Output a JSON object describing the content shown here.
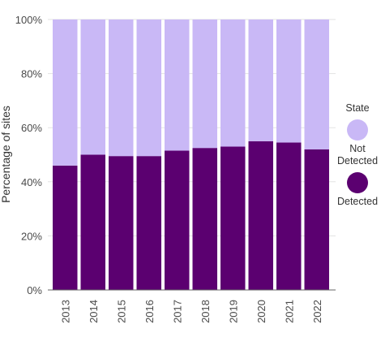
{
  "chart_data": {
    "type": "bar",
    "stacked": true,
    "categories": [
      "2013",
      "2014",
      "2015",
      "2016",
      "2017",
      "2018",
      "2019",
      "2020",
      "2021",
      "2022"
    ],
    "series": [
      {
        "name": "Detected",
        "color": "#5b0070",
        "values": [
          46,
          50,
          49.5,
          49.5,
          51.5,
          52.5,
          53,
          55,
          54.5,
          52
        ]
      },
      {
        "name": "Not Detected",
        "color": "#c9b8f6",
        "values": [
          54,
          50,
          50.5,
          50.5,
          48.5,
          47.5,
          47,
          45,
          45.5,
          48
        ]
      }
    ],
    "ylabel": "Percentage of sites",
    "xlabel": "",
    "ylim": [
      0,
      100
    ],
    "yticks": [
      0,
      20,
      40,
      60,
      80,
      100
    ],
    "ytick_labels": [
      "0%",
      "20%",
      "40%",
      "60%",
      "80%",
      "100%"
    ],
    "grid": true,
    "legend": {
      "title": "State",
      "placement": "right",
      "items": [
        {
          "label": "Not Detected",
          "color": "#c9b8f6"
        },
        {
          "label": "Detected",
          "color": "#5b0070"
        }
      ]
    }
  }
}
